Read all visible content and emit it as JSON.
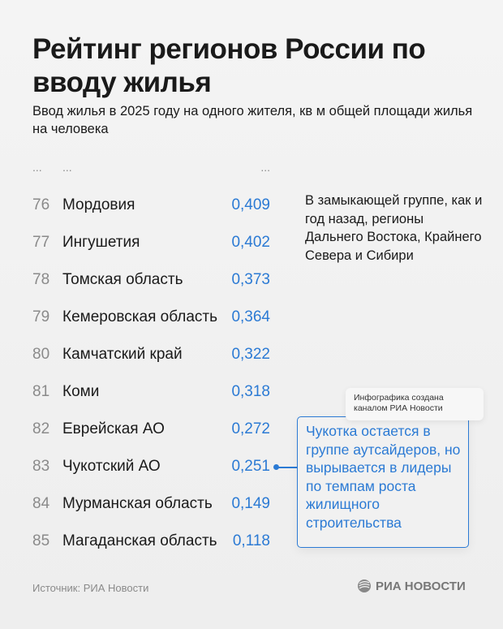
{
  "header": {
    "title": "Рейтинг регионов России по вводу жилья",
    "subtitle": "Ввод жилья в 2025 году на одного жителя, кв м общей площади жилья на человека"
  },
  "ellipsis_row": {
    "rank": "...",
    "name": "...",
    "value": "..."
  },
  "chart_data": {
    "type": "table",
    "columns": [
      "rank",
      "region",
      "value"
    ],
    "rows": [
      {
        "rank": "76",
        "region": "Мордовия",
        "value": "0,409"
      },
      {
        "rank": "77",
        "region": "Ингушетия",
        "value": "0,402"
      },
      {
        "rank": "78",
        "region": "Томская область",
        "value": "0,373"
      },
      {
        "rank": "79",
        "region": "Кемеровская область",
        "value": "0,364"
      },
      {
        "rank": "80",
        "region": "Камчатский край",
        "value": "0,322"
      },
      {
        "rank": "81",
        "region": "Коми",
        "value": "0,318"
      },
      {
        "rank": "82",
        "region": "Еврейская АО",
        "value": "0,272"
      },
      {
        "rank": "83",
        "region": "Чукотский АО",
        "value": "0,251"
      },
      {
        "rank": "84",
        "region": "Мурманская область",
        "value": "0,149"
      },
      {
        "rank": "85",
        "region": "Магаданская область",
        "value": "0,118"
      }
    ],
    "highlighted_region": "Чукотский АО",
    "value_color": "#2b7ad4"
  },
  "side_note": "В замыкающей группе, как и год назад, регионы Дальнего Востока, Крайнего Севера и Сибири",
  "callout": "Чукотка остается в группе аутсайдеров, но вырывается в лидеры по темпам роста жилищного строительства",
  "credit": "Инфографика создана каналом РИА Новости",
  "footer": {
    "source": "Источник: РИА Новости",
    "logo_text": "РИА НОВОСТИ",
    "logo_icon": "ria-globe-icon"
  }
}
